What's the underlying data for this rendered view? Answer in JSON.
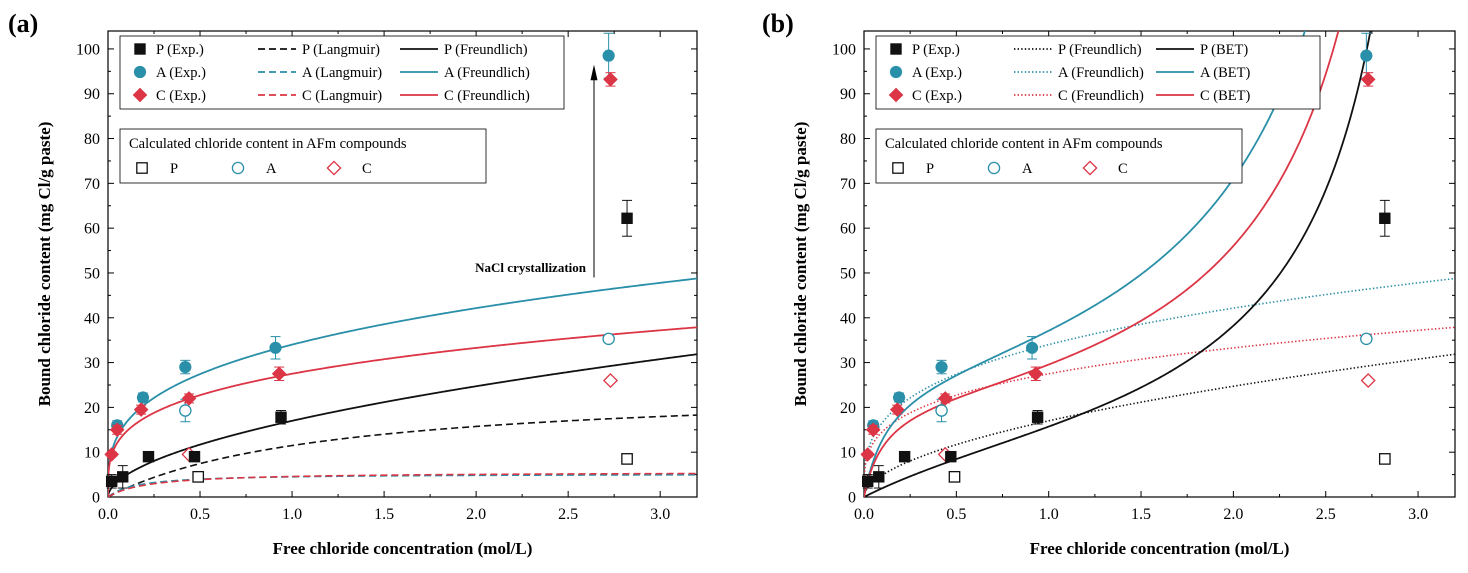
{
  "colors": {
    "P": "#111111",
    "A": "#2a8fa8",
    "C": "#dc3545"
  },
  "chart_data": [
    {
      "panel": "(a)",
      "type": "scatter",
      "xlabel": "Free chloride concentration (mol/L)",
      "ylabel": "Bound chloride content (mg Cl/g paste)",
      "xlim": [
        0,
        3.2
      ],
      "ylim": [
        0,
        104
      ],
      "xticks": [
        "0.0",
        "0.5",
        "1.0",
        "1.5",
        "2.0",
        "2.5",
        "3.0"
      ],
      "yticks": [
        "0",
        "10",
        "20",
        "30",
        "40",
        "50",
        "60",
        "70",
        "80",
        "90",
        "100"
      ],
      "legend": {
        "entries": [
          [
            "P (Exp.)",
            "P (Langmuir)",
            "P (Freundlich)"
          ],
          [
            "A (Exp.)",
            "A (Langmuir)",
            "A (Freundlich)"
          ],
          [
            "C (Exp.)",
            "C (Langmuir)",
            "C (Freundlich)"
          ]
        ],
        "afm_title": "Calculated chloride content in AFm compounds",
        "afm_entries": [
          "P",
          "A",
          "C"
        ]
      },
      "annotation": "NaCl crystallization",
      "exp_series": [
        {
          "name": "P (Exp.)",
          "marker": "square",
          "x": [
            0.02,
            0.08,
            0.22,
            0.47,
            0.94,
            2.82
          ],
          "y": [
            3.5,
            4.5,
            9.0,
            9.0,
            17.8,
            62.2
          ],
          "err": [
            1.5,
            2.5,
            0,
            0,
            1.5,
            4.0
          ]
        },
        {
          "name": "A (Exp.)",
          "marker": "circle",
          "x": [
            0.05,
            0.19,
            0.42,
            0.91,
            2.72
          ],
          "y": [
            16.0,
            22.2,
            29.0,
            33.3,
            98.5
          ],
          "err": [
            1,
            1,
            1.5,
            2.5,
            5.0
          ]
        },
        {
          "name": "C (Exp.)",
          "marker": "diamond",
          "x": [
            0.02,
            0.05,
            0.18,
            0.44,
            0.93,
            2.73
          ],
          "y": [
            9.5,
            15.0,
            19.5,
            22.0,
            27.5,
            93.2
          ],
          "err": [
            0.5,
            1,
            1,
            1,
            1.5,
            1.5
          ]
        }
      ],
      "afm_series": [
        {
          "name": "P",
          "marker": "open-square",
          "x": [
            0.49,
            2.82
          ],
          "y": [
            4.5,
            8.5
          ]
        },
        {
          "name": "A",
          "marker": "open-circle",
          "x": [
            0.42,
            2.72
          ],
          "y": [
            19.3,
            35.3
          ],
          "err": [
            2.5,
            0
          ]
        },
        {
          "name": "C",
          "marker": "open-diamond",
          "x": [
            0.44,
            2.73
          ],
          "y": [
            9.5,
            26.0
          ]
        }
      ],
      "fit_series": [
        {
          "name": "P (Langmuir)",
          "style": "dashed",
          "model": "langmuir",
          "params": {
            "a": 0.85,
            "b": 25.0
          }
        },
        {
          "name": "A (Langmuir)",
          "style": "dashed",
          "model": "langmuir",
          "params": {
            "a": 6.5,
            "b": 5.2
          }
        },
        {
          "name": "C (Langmuir)",
          "style": "dashed",
          "model": "langmuir",
          "params": {
            "a": 4.5,
            "b": 5.6
          }
        },
        {
          "name": "P (Freundlich)",
          "style": "solid",
          "model": "freundlich",
          "params": {
            "k": 17.0,
            "n": 0.54
          }
        },
        {
          "name": "A (Freundlich)",
          "style": "solid",
          "model": "freundlich",
          "params": {
            "k": 34.0,
            "n": 0.31
          }
        },
        {
          "name": "C (Freundlich)",
          "style": "solid",
          "model": "freundlich",
          "params": {
            "k": 27.5,
            "n": 0.275
          }
        }
      ]
    },
    {
      "panel": "(b)",
      "type": "scatter",
      "xlabel": "Free chloride concentration (mol/L)",
      "ylabel": "Bound chloride content (mg Cl/g paste)",
      "xlim": [
        0,
        3.2
      ],
      "ylim": [
        0,
        104
      ],
      "xticks": [
        "0.0",
        "0.5",
        "1.0",
        "1.5",
        "2.0",
        "2.5",
        "3.0"
      ],
      "yticks": [
        "0",
        "10",
        "20",
        "30",
        "40",
        "50",
        "60",
        "70",
        "80",
        "90",
        "100"
      ],
      "legend": {
        "entries": [
          [
            "P (Exp.)",
            "P (Freundlich)",
            "P (BET)"
          ],
          [
            "A (Exp.)",
            "A (Freundlich)",
            "A (BET)"
          ],
          [
            "C (Exp.)",
            "C (Freundlich)",
            "C (BET)"
          ]
        ],
        "afm_title": "Calculated chloride content in AFm compounds",
        "afm_entries": [
          "P",
          "A",
          "C"
        ]
      },
      "exp_series": [
        {
          "name": "P (Exp.)",
          "marker": "square",
          "x": [
            0.02,
            0.08,
            0.22,
            0.47,
            0.94,
            2.82
          ],
          "y": [
            3.5,
            4.5,
            9.0,
            9.0,
            17.8,
            62.2
          ],
          "err": [
            1.5,
            2.5,
            0,
            0,
            1.5,
            4.0
          ]
        },
        {
          "name": "A (Exp.)",
          "marker": "circle",
          "x": [
            0.05,
            0.19,
            0.42,
            0.91,
            2.72
          ],
          "y": [
            16.0,
            22.2,
            29.0,
            33.3,
            98.5
          ],
          "err": [
            1,
            1,
            1.5,
            2.5,
            5.0
          ]
        },
        {
          "name": "C (Exp.)",
          "marker": "diamond",
          "x": [
            0.02,
            0.05,
            0.18,
            0.44,
            0.93,
            2.73
          ],
          "y": [
            9.5,
            15.0,
            19.5,
            22.0,
            27.5,
            93.2
          ],
          "err": [
            0.5,
            1,
            1,
            1,
            1.5,
            1.5
          ]
        }
      ],
      "afm_series": [
        {
          "name": "P",
          "marker": "open-square",
          "x": [
            0.49,
            2.82
          ],
          "y": [
            4.5,
            8.5
          ]
        },
        {
          "name": "A",
          "marker": "open-circle",
          "x": [
            0.42,
            2.72
          ],
          "y": [
            19.3,
            35.3
          ],
          "err": [
            2.5,
            0
          ]
        },
        {
          "name": "C",
          "marker": "open-diamond",
          "x": [
            0.44,
            2.73
          ],
          "y": [
            9.5,
            26.0
          ]
        }
      ],
      "fit_series": [
        {
          "name": "P (Freundlich)",
          "style": "dotted",
          "model": "freundlich",
          "params": {
            "k": 17.0,
            "n": 0.54
          }
        },
        {
          "name": "A (Freundlich)",
          "style": "dotted",
          "model": "freundlich",
          "params": {
            "k": 34.0,
            "n": 0.31
          }
        },
        {
          "name": "C (Freundlich)",
          "style": "dotted",
          "model": "freundlich",
          "params": {
            "k": 27.5,
            "n": 0.275
          }
        },
        {
          "name": "P (BET)",
          "style": "solid",
          "model": "bet",
          "params": {
            "qm": 17.0,
            "K": 4.0,
            "xs": 3.25
          }
        },
        {
          "name": "A (BET)",
          "style": "solid",
          "model": "bet",
          "params": {
            "qm": 28.0,
            "K": 25.0,
            "xs": 3.25
          }
        },
        {
          "name": "C (BET)",
          "style": "solid",
          "model": "bet",
          "params": {
            "qm": 22.0,
            "K": 30.0,
            "xs": 3.25
          }
        }
      ]
    }
  ]
}
